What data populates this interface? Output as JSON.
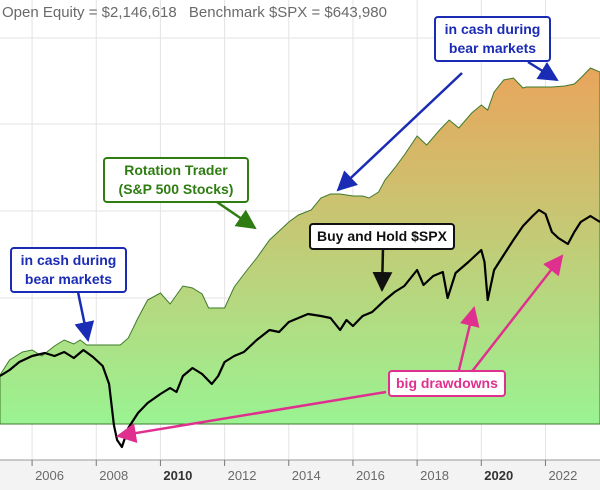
{
  "header": {
    "open_equity": "Open Equity = $2,146,618",
    "benchmark": "Benchmark $SPX = $643,980"
  },
  "annotations": {
    "cash_left": "in cash during bear markets",
    "cash_right": "in cash during bear markets",
    "rotation": "Rotation Trader (S&P 500 Stocks)",
    "buy_hold": "Buy and Hold $SPX",
    "drawdowns": "big drawdowns"
  },
  "colors": {
    "equity_top": "#e9a55c",
    "equity_bottom": "#9af392",
    "equity_edge": "#3e7a2a",
    "benchmark_line": "#000000",
    "arrow_blue": "#1a2bb5",
    "arrow_green": "#2f7d12",
    "arrow_magenta": "#e0308f",
    "grid": "#e3e3e3",
    "axis_bg": "#f3f3f3"
  },
  "chart_data": {
    "type": "area",
    "grid": true,
    "x_ticks": [
      {
        "label": "2006",
        "value": 2006.0,
        "bold": false
      },
      {
        "label": "2008",
        "value": 2008.0,
        "bold": false
      },
      {
        "label": "2010",
        "value": 2010.0,
        "bold": true
      },
      {
        "label": "2012",
        "value": 2012.0,
        "bold": false
      },
      {
        "label": "2014",
        "value": 2014.0,
        "bold": false
      },
      {
        "label": "2016",
        "value": 2016.0,
        "bold": false
      },
      {
        "label": "2018",
        "value": 2018.0,
        "bold": false
      },
      {
        "label": "2020",
        "value": 2020.0,
        "bold": true
      },
      {
        "label": "2022",
        "value": 2022.0,
        "bold": false
      }
    ],
    "xlim": [
      2005.0,
      2023.7
    ],
    "series": [
      {
        "name": "Rotation Trader (S&P 500 Stocks)",
        "points": [
          [
            2005.0,
            375
          ],
          [
            2005.3,
            360
          ],
          [
            2005.7,
            352
          ],
          [
            2006.0,
            350
          ],
          [
            2006.3,
            356
          ],
          [
            2006.7,
            346
          ],
          [
            2007.0,
            340
          ],
          [
            2007.3,
            344
          ],
          [
            2007.5,
            340
          ],
          [
            2007.7,
            345
          ],
          [
            2007.8,
            345
          ],
          [
            2008.0,
            345
          ],
          [
            2008.5,
            345
          ],
          [
            2008.75,
            345
          ],
          [
            2009.0,
            338
          ],
          [
            2009.3,
            318
          ],
          [
            2009.6,
            300
          ],
          [
            2010.0,
            293
          ],
          [
            2010.3,
            304
          ],
          [
            2010.7,
            286
          ],
          [
            2011.0,
            288
          ],
          [
            2011.3,
            294
          ],
          [
            2011.5,
            308
          ],
          [
            2012.0,
            308
          ],
          [
            2012.3,
            287
          ],
          [
            2012.7,
            270
          ],
          [
            2013.0,
            258
          ],
          [
            2013.4,
            240
          ],
          [
            2013.8,
            228
          ],
          [
            2014.0,
            222
          ],
          [
            2014.3,
            215
          ],
          [
            2014.7,
            210
          ],
          [
            2015.0,
            198
          ],
          [
            2015.3,
            194
          ],
          [
            2015.6,
            194
          ],
          [
            2016.0,
            196
          ],
          [
            2016.3,
            196
          ],
          [
            2016.5,
            198
          ],
          [
            2016.8,
            192
          ],
          [
            2017.0,
            180
          ],
          [
            2017.3,
            168
          ],
          [
            2017.6,
            155
          ],
          [
            2018.0,
            136
          ],
          [
            2018.3,
            145
          ],
          [
            2018.7,
            130
          ],
          [
            2019.0,
            120
          ],
          [
            2019.3,
            128
          ],
          [
            2019.7,
            113
          ],
          [
            2020.0,
            105
          ],
          [
            2020.2,
            110
          ],
          [
            2020.4,
            92
          ],
          [
            2020.7,
            80
          ],
          [
            2021.0,
            78
          ],
          [
            2021.3,
            88
          ],
          [
            2021.4,
            87
          ],
          [
            2021.8,
            87
          ],
          [
            2022.2,
            87
          ],
          [
            2022.6,
            86
          ],
          [
            2022.9,
            84
          ],
          [
            2023.1,
            78
          ],
          [
            2023.4,
            68
          ],
          [
            2023.7,
            72
          ]
        ]
      },
      {
        "name": "Buy and Hold $SPX",
        "points": [
          [
            2005.0,
            376
          ],
          [
            2005.3,
            370
          ],
          [
            2005.6,
            362
          ],
          [
            2006.0,
            356
          ],
          [
            2006.4,
            353
          ],
          [
            2006.7,
            356
          ],
          [
            2007.0,
            352
          ],
          [
            2007.3,
            358
          ],
          [
            2007.6,
            350
          ],
          [
            2007.9,
            357
          ],
          [
            2008.2,
            366
          ],
          [
            2008.4,
            384
          ],
          [
            2008.55,
            425
          ],
          [
            2008.65,
            440
          ],
          [
            2008.8,
            447
          ],
          [
            2009.0,
            428
          ],
          [
            2009.3,
            413
          ],
          [
            2009.6,
            403
          ],
          [
            2010.0,
            394
          ],
          [
            2010.3,
            388
          ],
          [
            2010.5,
            392
          ],
          [
            2010.7,
            376
          ],
          [
            2011.0,
            368
          ],
          [
            2011.3,
            374
          ],
          [
            2011.6,
            384
          ],
          [
            2011.8,
            376
          ],
          [
            2012.0,
            362
          ],
          [
            2012.3,
            356
          ],
          [
            2012.6,
            352
          ],
          [
            2013.0,
            340
          ],
          [
            2013.4,
            330
          ],
          [
            2013.7,
            332
          ],
          [
            2014.0,
            322
          ],
          [
            2014.3,
            318
          ],
          [
            2014.6,
            314
          ],
          [
            2015.0,
            316
          ],
          [
            2015.3,
            318
          ],
          [
            2015.6,
            330
          ],
          [
            2015.8,
            320
          ],
          [
            2016.0,
            326
          ],
          [
            2016.3,
            316
          ],
          [
            2016.6,
            312
          ],
          [
            2017.0,
            300
          ],
          [
            2017.3,
            292
          ],
          [
            2017.6,
            286
          ],
          [
            2018.0,
            270
          ],
          [
            2018.2,
            285
          ],
          [
            2018.5,
            276
          ],
          [
            2018.8,
            272
          ],
          [
            2018.95,
            298
          ],
          [
            2019.2,
            273
          ],
          [
            2019.6,
            262
          ],
          [
            2020.0,
            250
          ],
          [
            2020.1,
            262
          ],
          [
            2020.2,
            300
          ],
          [
            2020.4,
            270
          ],
          [
            2020.7,
            255
          ],
          [
            2021.0,
            240
          ],
          [
            2021.3,
            226
          ],
          [
            2021.6,
            216
          ],
          [
            2021.8,
            210
          ],
          [
            2022.0,
            214
          ],
          [
            2022.2,
            232
          ],
          [
            2022.4,
            238
          ],
          [
            2022.7,
            244
          ],
          [
            2022.9,
            232
          ],
          [
            2023.1,
            222
          ],
          [
            2023.4,
            216
          ],
          [
            2023.7,
            222
          ]
        ]
      }
    ]
  }
}
